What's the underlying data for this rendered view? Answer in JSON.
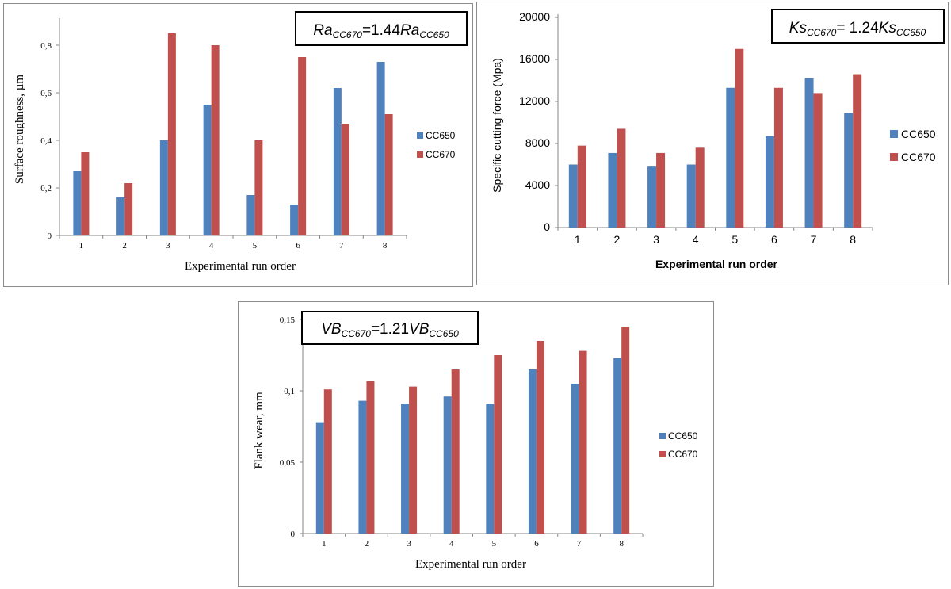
{
  "colors": {
    "CC650": "#4f81bd",
    "CC670": "#c0504d",
    "axis": "#868686"
  },
  "chart_data": [
    {
      "type": "bar",
      "formula": {
        "lhs": "Ra",
        "lhs_sub": "CC670",
        "eq": "=1.44",
        "rhs": "Ra",
        "rhs_sub": "CC650"
      },
      "xlabel": "Experimental run order",
      "ylabel": "Surface roughness, µm",
      "categories": [
        "1",
        "2",
        "3",
        "4",
        "5",
        "6",
        "7",
        "8"
      ],
      "ylim": [
        0,
        0.9
      ],
      "yticks": [
        0,
        0.2,
        0.4,
        0.6,
        0.8
      ],
      "ytick_labels": [
        "0",
        "0,2",
        "0,4",
        "0,6",
        "0,8"
      ],
      "legend_position": "right",
      "series": [
        {
          "name": "CC650",
          "values": [
            0.27,
            0.16,
            0.4,
            0.55,
            0.17,
            0.13,
            0.62,
            0.73
          ]
        },
        {
          "name": "CC670",
          "values": [
            0.35,
            0.22,
            0.85,
            0.8,
            0.4,
            0.75,
            0.47,
            0.51
          ]
        }
      ]
    },
    {
      "type": "bar",
      "formula": {
        "lhs": "Ks",
        "lhs_sub": "CC670",
        "eq": "= 1.24",
        "rhs": "Ks",
        "rhs_sub": "CC650"
      },
      "xlabel": "Experimental run order",
      "ylabel": "Specific cutting force (Mpa)",
      "categories": [
        "1",
        "2",
        "3",
        "4",
        "5",
        "6",
        "7",
        "8"
      ],
      "ylim": [
        0,
        20000
      ],
      "yticks": [
        0,
        4000,
        8000,
        12000,
        16000,
        20000
      ],
      "ytick_labels": [
        "0",
        "4000",
        "8000",
        "12000",
        "16000",
        "20000"
      ],
      "legend_position": "right",
      "series": [
        {
          "name": "CC650",
          "values": [
            6000,
            7100,
            5800,
            6000,
            13300,
            8700,
            14200,
            10900
          ]
        },
        {
          "name": "CC670",
          "values": [
            7800,
            9400,
            7100,
            7600,
            17000,
            13300,
            12800,
            14600
          ]
        }
      ]
    },
    {
      "type": "bar",
      "formula": {
        "lhs": "VB",
        "lhs_sub": "CC670",
        "eq": "=1.21",
        "rhs": "VB",
        "rhs_sub": "CC650"
      },
      "xlabel": "Experimental run order",
      "ylabel": "Flank wear, mm",
      "categories": [
        "1",
        "2",
        "3",
        "4",
        "5",
        "6",
        "7",
        "8"
      ],
      "ylim": [
        0,
        0.15
      ],
      "yticks": [
        0,
        0.05,
        0.1,
        0.15
      ],
      "ytick_labels": [
        "0",
        "0,05",
        "0,1",
        "0,15"
      ],
      "legend_position": "right",
      "series": [
        {
          "name": "CC650",
          "values": [
            0.078,
            0.093,
            0.091,
            0.096,
            0.091,
            0.115,
            0.105,
            0.123
          ]
        },
        {
          "name": "CC670",
          "values": [
            0.101,
            0.107,
            0.103,
            0.115,
            0.125,
            0.135,
            0.128,
            0.145
          ]
        }
      ]
    }
  ]
}
